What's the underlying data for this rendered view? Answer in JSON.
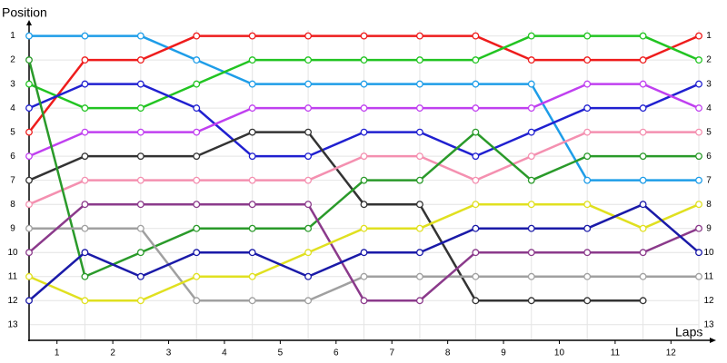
{
  "chart_data": {
    "type": "line",
    "y_label": "Position",
    "x_label": "Laps",
    "x": [
      0,
      1,
      2,
      3,
      4,
      5,
      6,
      7,
      8,
      9,
      10,
      11,
      12
    ],
    "xlim": [
      0,
      12.26
    ],
    "xticks": [
      {
        "value": 0.5,
        "label": "1"
      },
      {
        "value": 1.5,
        "label": "2"
      },
      {
        "value": 2.5,
        "label": "3"
      },
      {
        "value": 3.5,
        "label": "4"
      },
      {
        "value": 4.5,
        "label": "5"
      },
      {
        "value": 5.5,
        "label": "6"
      },
      {
        "value": 6.5,
        "label": "7"
      },
      {
        "value": 7.5,
        "label": "8"
      },
      {
        "value": 8.5,
        "label": "9"
      },
      {
        "value": 9.5,
        "label": "10"
      },
      {
        "value": 10.5,
        "label": "11"
      },
      {
        "value": 11.5,
        "label": "12"
      }
    ],
    "ylim": [
      13.65,
      0.45
    ],
    "yticks": [
      1,
      2,
      3,
      4,
      5,
      6,
      7,
      8,
      9,
      10,
      11,
      12,
      13
    ],
    "grid": true,
    "series": [
      {
        "color": "#1e9de8",
        "values": [
          1,
          1,
          1,
          2,
          3,
          3,
          3,
          3,
          3,
          3,
          7,
          7,
          7
        ]
      },
      {
        "color": "#ee1c1c",
        "values": [
          5,
          2,
          2,
          1,
          1,
          1,
          1,
          1,
          1,
          2,
          2,
          2,
          1
        ]
      },
      {
        "color": "#22c422",
        "values": [
          3,
          4,
          4,
          3,
          2,
          2,
          2,
          2,
          2,
          1,
          1,
          1,
          2
        ]
      },
      {
        "color": "#2020d0",
        "values": [
          4,
          3,
          3,
          4,
          6,
          6,
          5,
          5,
          6,
          5,
          4,
          4,
          3
        ]
      },
      {
        "color": "#c040f0",
        "values": [
          6,
          5,
          5,
          5,
          4,
          4,
          4,
          4,
          4,
          4,
          3,
          3,
          4
        ]
      },
      {
        "color": "#333333",
        "values": [
          7,
          6,
          6,
          6,
          5,
          5,
          8,
          8,
          12,
          12,
          12,
          12,
          null
        ]
      },
      {
        "color": "#f490b0",
        "values": [
          8,
          7,
          7,
          7,
          7,
          7,
          6,
          6,
          7,
          6,
          5,
          5,
          5
        ]
      },
      {
        "color": "#2a9a2a",
        "values": [
          2,
          11,
          10,
          9,
          9,
          9,
          7,
          7,
          5,
          7,
          6,
          6,
          6
        ]
      },
      {
        "color": "#a0a0a0",
        "values": [
          9,
          9,
          9,
          12,
          12,
          12,
          11,
          11,
          11,
          11,
          11,
          11,
          11
        ]
      },
      {
        "color": "#8b3a8b",
        "values": [
          10,
          8,
          8,
          8,
          8,
          8,
          12,
          12,
          10,
          10,
          10,
          10,
          9
        ]
      },
      {
        "color": "#e0e020",
        "values": [
          11,
          12,
          12,
          11,
          11,
          10,
          9,
          9,
          8,
          8,
          8,
          9,
          8
        ]
      },
      {
        "color": "#1a1aa8",
        "values": [
          12,
          10,
          11,
          10,
          10,
          11,
          10,
          10,
          9,
          9,
          9,
          8,
          10
        ]
      }
    ]
  }
}
